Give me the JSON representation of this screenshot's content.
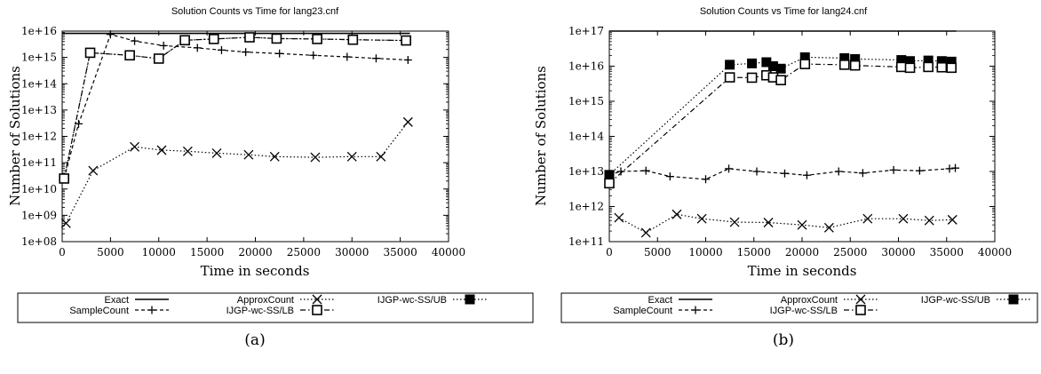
{
  "chart_data": [
    {
      "type": "line",
      "title": "Solution Counts vs Time for lang23.cnf",
      "xlabel": "Time in seconds",
      "ylabel": "Number of Solutions",
      "xlim": [
        0,
        40000
      ],
      "xticks": [
        0,
        5000,
        10000,
        15000,
        20000,
        25000,
        30000,
        35000,
        40000
      ],
      "ylim": [
        100000000.0,
        1e+16
      ],
      "yscale": "log",
      "yticks": [
        100000000.0,
        1000000000.0,
        10000000000.0,
        100000000000.0,
        1000000000000.0,
        10000000000000.0,
        100000000000000.0,
        1000000000000000.0,
        1e+16
      ],
      "ytick_labels": [
        "1e+08",
        "1e+09",
        "1e+10",
        "1e+11",
        "1e+12",
        "1e+13",
        "1e+14",
        "1e+15",
        "1e+16"
      ],
      "grid": false,
      "legend_position": "below",
      "caption": "(a)",
      "series": [
        {
          "name": "Exact",
          "style": "solid",
          "marker": "none",
          "points": [
            [
              0,
              8200000000000000.0
            ],
            [
              36000,
              8200000000000000.0
            ]
          ]
        },
        {
          "name": "ApproxCount",
          "style": "dotted",
          "marker": "x",
          "points": [
            [
              400,
              500000000.0
            ],
            [
              3200,
              50000000000.0
            ],
            [
              7500,
              400000000000.0
            ],
            [
              10300,
              300000000000.0
            ],
            [
              13000,
              270000000000.0
            ],
            [
              16000,
              230000000000.0
            ],
            [
              19300,
              200000000000.0
            ],
            [
              22000,
              170000000000.0
            ],
            [
              26200,
              160000000000.0
            ],
            [
              30000,
              170000000000.0
            ],
            [
              33000,
              170000000000.0
            ],
            [
              35800,
              3500000000000.0
            ]
          ]
        },
        {
          "name": "IJGP-wc-SS/UB",
          "style": "dotted",
          "marker": "filled-square",
          "points": [
            [
              200,
              25000000000.0
            ],
            [
              2900,
              1500000000000000.0
            ],
            [
              7000,
              1200000000000000.0
            ],
            [
              10000,
              900000000000000.0
            ],
            [
              12700,
              4500000000000000.0
            ],
            [
              15700,
              5000000000000000.0
            ],
            [
              19400,
              5800000000000000.0
            ],
            [
              22200,
              5200000000000000.0
            ],
            [
              26400,
              5000000000000000.0
            ],
            [
              30100,
              4700000000000000.0
            ],
            [
              35600,
              4400000000000000.0
            ]
          ]
        },
        {
          "name": "SampleCount",
          "style": "dashed",
          "marker": "plus",
          "points": [
            [
              200,
              25000000000.0
            ],
            [
              1700,
              3000000000000.0
            ],
            [
              5000,
              7500000000000000.0
            ],
            [
              7500,
              4200000000000000.0
            ],
            [
              10500,
              2800000000000000.0
            ],
            [
              14000,
              2300000000000000.0
            ],
            [
              16500,
              1900000000000000.0
            ],
            [
              19000,
              1600000000000000.0
            ],
            [
              22500,
              1400000000000000.0
            ],
            [
              26000,
              1200000000000000.0
            ],
            [
              29500,
              1050000000000000.0
            ],
            [
              32500,
              920000000000000.0
            ],
            [
              35800,
              800000000000000.0
            ]
          ]
        },
        {
          "name": "IJGP-wc-SS/LB",
          "style": "dash-dot",
          "marker": "open-square",
          "points": [
            [
              200,
              25000000000.0
            ],
            [
              2900,
              1500000000000000.0
            ],
            [
              7000,
              1200000000000000.0
            ],
            [
              10000,
              900000000000000.0
            ],
            [
              12700,
              4500000000000000.0
            ],
            [
              15700,
              5000000000000000.0
            ],
            [
              19400,
              5800000000000000.0
            ],
            [
              22200,
              5200000000000000.0
            ],
            [
              26400,
              5000000000000000.0
            ],
            [
              30100,
              4700000000000000.0
            ],
            [
              35600,
              4400000000000000.0
            ]
          ]
        }
      ]
    },
    {
      "type": "line",
      "title": "Solution Counts vs Time for lang24.cnf",
      "xlabel": "Time in seconds",
      "ylabel": "Number of Solutions",
      "xlim": [
        0,
        40000
      ],
      "xticks": [
        0,
        5000,
        10000,
        15000,
        20000,
        25000,
        30000,
        35000,
        40000
      ],
      "ylim": [
        100000000000.0,
        1e+17
      ],
      "yscale": "log",
      "yticks": [
        100000000000.0,
        1000000000000.0,
        10000000000000.0,
        100000000000000.0,
        1000000000000000.0,
        1e+16,
        1e+17
      ],
      "ytick_labels": [
        "1e+11",
        "1e+12",
        "1e+13",
        "1e+14",
        "1e+15",
        "1e+16",
        "1e+17"
      ],
      "grid": false,
      "legend_position": "below",
      "caption": "(b)",
      "series": [
        {
          "name": "Exact",
          "style": "solid",
          "marker": "none",
          "points": [
            [
              0,
              1e+17
            ],
            [
              36000,
              1e+17
            ]
          ]
        },
        {
          "name": "ApproxCount",
          "style": "dotted",
          "marker": "x",
          "points": [
            [
              1000,
              480000000000.0
            ],
            [
              3800,
              180000000000.0
            ],
            [
              7000,
              600000000000.0
            ],
            [
              9600,
              450000000000.0
            ],
            [
              13000,
              360000000000.0
            ],
            [
              16500,
              350000000000.0
            ],
            [
              20000,
              300000000000.0
            ],
            [
              22800,
              250000000000.0
            ],
            [
              26800,
              450000000000.0
            ],
            [
              30500,
              450000000000.0
            ],
            [
              33200,
              400000000000.0
            ],
            [
              35600,
              420000000000.0
            ]
          ]
        },
        {
          "name": "IJGP-wc-SS/UB",
          "style": "dotted",
          "marker": "filled-square",
          "points": [
            [
              0,
              8000000000000.0
            ],
            [
              12500,
              1.1e+16
            ],
            [
              14800,
              1.2e+16
            ],
            [
              16300,
              1.3e+16
            ],
            [
              17000,
              1e+16
            ],
            [
              17800,
              8500000000000000.0
            ],
            [
              20300,
              1.8e+16
            ],
            [
              24400,
              1.7e+16
            ],
            [
              25500,
              1.6e+16
            ],
            [
              30300,
              1.5e+16
            ],
            [
              31200,
              1.4e+16
            ],
            [
              33100,
              1.45e+16
            ],
            [
              34500,
              1.4e+16
            ],
            [
              35500,
              1.35e+16
            ]
          ]
        },
        {
          "name": "SampleCount",
          "style": "dashed",
          "marker": "plus",
          "points": [
            [
              0,
              8000000000000.0
            ],
            [
              1200,
              10000000000000.0
            ],
            [
              3800,
              10500000000000.0
            ],
            [
              6300,
              7200000000000.0
            ],
            [
              10000,
              6000000000000.0
            ],
            [
              12400,
              12000000000000.0
            ],
            [
              15300,
              10000000000000.0
            ],
            [
              18200,
              8800000000000.0
            ],
            [
              20500,
              7800000000000.0
            ],
            [
              23800,
              10000000000000.0
            ],
            [
              26300,
              9000000000000.0
            ],
            [
              29500,
              11000000000000.0
            ],
            [
              32200,
              10500000000000.0
            ],
            [
              35300,
              12000000000000.0
            ],
            [
              35900,
              12500000000000.0
            ]
          ]
        },
        {
          "name": "IJGP-wc-SS/LB",
          "style": "dash-dot",
          "marker": "open-square",
          "points": [
            [
              0,
              4600000000000.0
            ],
            [
              12500,
              4800000000000000.0
            ],
            [
              14800,
              4700000000000000.0
            ],
            [
              16300,
              5500000000000000.0
            ],
            [
              17000,
              4800000000000000.0
            ],
            [
              17800,
              4000000000000000.0
            ],
            [
              20300,
              1.15e+16
            ],
            [
              24400,
              1.1e+16
            ],
            [
              25500,
              1.05e+16
            ],
            [
              30300,
              9500000000000000.0
            ],
            [
              31200,
              9000000000000000.0
            ],
            [
              33100,
              9500000000000000.0
            ],
            [
              34500,
              9300000000000000.0
            ],
            [
              35500,
              9000000000000000.0
            ]
          ]
        }
      ]
    }
  ]
}
